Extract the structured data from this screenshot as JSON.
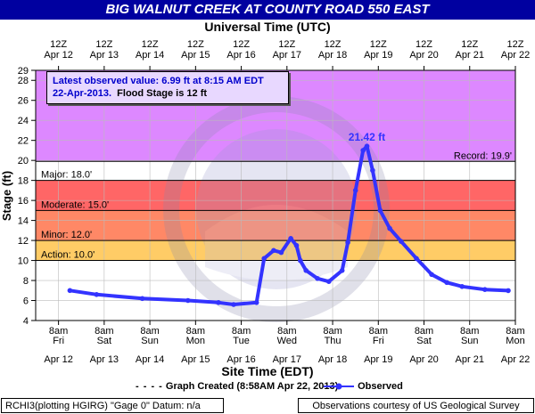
{
  "title": "BIG WALNUT CREEK AT COUNTY ROAD 550 EAST",
  "top_axis_title": "Universal Time (UTC)",
  "bottom_axis_title": "Site Time (EDT)",
  "info_box": {
    "line1": "Latest observed value: 6.99 ft at 8:15 AM EDT",
    "line2_date": "22-Apr-2013.",
    "line2_rest": "Flood Stage is 12 ft"
  },
  "legend": {
    "graph_created": "Graph Created (8:58AM Apr 22, 2013)",
    "observed": "Observed"
  },
  "footer": {
    "left": "RCHI3(plotting HGIRG) \"Gage 0\" Datum: n/a",
    "right": "Observations courtesy of US Geological Survey"
  },
  "colors": {
    "title_bg": "#0000a0",
    "record_band": "#dd88ff",
    "major_band": "#ff6666",
    "moderate_band": "#ff8866",
    "minor_band": "#ffcc66",
    "action_band": "#ffff66",
    "series": "#3333ff"
  },
  "chart_data": {
    "type": "line",
    "ylabel": "Stage (ft)",
    "ylim": [
      4,
      29
    ],
    "y_ticks": [
      "4",
      "6",
      "8",
      "10",
      "12",
      "14",
      "16",
      "18",
      "20",
      "22",
      "24",
      "26",
      "28",
      "29"
    ],
    "bottom_ticks": [
      {
        "time": "8am",
        "day": "Fri",
        "date": "Apr 12"
      },
      {
        "time": "8am",
        "day": "Sat",
        "date": "Apr 13"
      },
      {
        "time": "8am",
        "day": "Sun",
        "date": "Apr 14"
      },
      {
        "time": "8am",
        "day": "Mon",
        "date": "Apr 15"
      },
      {
        "time": "8am",
        "day": "Tue",
        "date": "Apr 16"
      },
      {
        "time": "8am",
        "day": "Wed",
        "date": "Apr 17"
      },
      {
        "time": "8am",
        "day": "Thu",
        "date": "Apr 18"
      },
      {
        "time": "8am",
        "day": "Fri",
        "date": "Apr 19"
      },
      {
        "time": "8am",
        "day": "Sat",
        "date": "Apr 20"
      },
      {
        "time": "8am",
        "day": "Sun",
        "date": "Apr 21"
      },
      {
        "time": "8am",
        "day": "Mon",
        "date": "Apr 22"
      }
    ],
    "top_ticks": [
      {
        "time": "12Z",
        "date": "Apr 12"
      },
      {
        "time": "12Z",
        "date": "Apr 13"
      },
      {
        "time": "12Z",
        "date": "Apr 14"
      },
      {
        "time": "12Z",
        "date": "Apr 15"
      },
      {
        "time": "12Z",
        "date": "Apr 16"
      },
      {
        "time": "12Z",
        "date": "Apr 17"
      },
      {
        "time": "12Z",
        "date": "Apr 18"
      },
      {
        "time": "12Z",
        "date": "Apr 19"
      },
      {
        "time": "12Z",
        "date": "Apr 20"
      },
      {
        "time": "12Z",
        "date": "Apr 21"
      },
      {
        "time": "12Z",
        "date": "Apr 22"
      }
    ],
    "flood_categories": [
      {
        "name": "Record",
        "label": "Record: 19.9'",
        "value": 19.9
      },
      {
        "name": "Major",
        "label": "Major: 18.0'",
        "value": 18.0
      },
      {
        "name": "Moderate",
        "label": "Moderate: 15.0'",
        "value": 15.0
      },
      {
        "name": "Minor",
        "label": "Minor: 12.0'",
        "value": 12.0
      },
      {
        "name": "Action",
        "label": "Action: 10.0'",
        "value": 10.0
      }
    ],
    "peak_label": "21.42 ft",
    "peak": {
      "x": "Apr 19 06:00",
      "y": 21.42
    },
    "series": [
      {
        "name": "Observed",
        "x": [
          "Apr 12 18:00",
          "Apr 13 08:00",
          "Apr 14 08:00",
          "Apr 15 08:00",
          "Apr 16 00:00",
          "Apr 16 08:00",
          "Apr 16 20:00",
          "Apr 17 00:00",
          "Apr 17 05:00",
          "Apr 17 09:00",
          "Apr 17 14:00",
          "Apr 17 17:00",
          "Apr 17 19:00",
          "Apr 17 22:00",
          "Apr 18 04:00",
          "Apr 18 10:00",
          "Apr 18 17:00",
          "Apr 18 20:00",
          "Apr 19 00:00",
          "Apr 19 04:00",
          "Apr 19 06:00",
          "Apr 19 09:00",
          "Apr 19 13:00",
          "Apr 19 18:00",
          "Apr 20 00:00",
          "Apr 20 08:00",
          "Apr 20 16:00",
          "Apr 21 00:00",
          "Apr 21 08:00",
          "Apr 21 20:00",
          "Apr 22 08:15"
        ],
        "y": [
          7.0,
          6.6,
          6.2,
          6.0,
          5.8,
          5.6,
          5.8,
          10.2,
          11.0,
          10.8,
          12.2,
          11.5,
          10.0,
          9.0,
          8.2,
          7.9,
          9.0,
          11.8,
          17.0,
          21.0,
          21.42,
          19.0,
          15.0,
          13.2,
          11.9,
          10.2,
          8.6,
          7.8,
          7.4,
          7.1,
          6.99
        ]
      }
    ]
  }
}
